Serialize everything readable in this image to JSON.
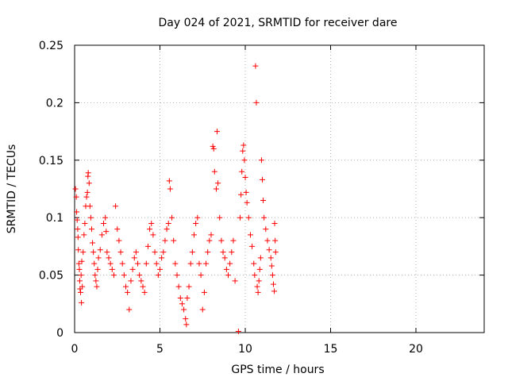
{
  "chart_data": {
    "type": "scatter",
    "title": "Day 024 of 2021, SRMTID for receiver dare",
    "xlabel": "GPS time / hours",
    "ylabel": "SRMTID / TECUs",
    "xlim": [
      0,
      24
    ],
    "ylim": [
      0,
      0.25
    ],
    "x_ticks": [
      0,
      5,
      10,
      15,
      20
    ],
    "x_tick_labels": [
      "0",
      "5",
      "10",
      "15",
      "20"
    ],
    "y_ticks": [
      0,
      0.05,
      0.1,
      0.15,
      0.2,
      0.25
    ],
    "y_tick_labels": [
      "0",
      "0.05",
      "0.1",
      "0.15",
      "0.2",
      "0.25"
    ],
    "grid": true,
    "marker": "+",
    "color": "#ff0000",
    "series": [
      {
        "name": "SRMTID",
        "points": [
          [
            0.05,
            0.125
          ],
          [
            0.1,
            0.118
          ],
          [
            0.12,
            0.105
          ],
          [
            0.15,
            0.098
          ],
          [
            0.18,
            0.09
          ],
          [
            0.2,
            0.083
          ],
          [
            0.22,
            0.072
          ],
          [
            0.25,
            0.06
          ],
          [
            0.28,
            0.055
          ],
          [
            0.3,
            0.045
          ],
          [
            0.32,
            0.038
          ],
          [
            0.35,
            0.035
          ],
          [
            0.38,
            0.05
          ],
          [
            0.4,
            0.026
          ],
          [
            0.42,
            0.062
          ],
          [
            0.45,
            0.04
          ],
          [
            0.5,
            0.07
          ],
          [
            0.55,
            0.085
          ],
          [
            0.6,
            0.095
          ],
          [
            0.65,
            0.11
          ],
          [
            0.7,
            0.118
          ],
          [
            0.75,
            0.122
          ],
          [
            0.78,
            0.136
          ],
          [
            0.8,
            0.139
          ],
          [
            0.85,
            0.13
          ],
          [
            0.9,
            0.11
          ],
          [
            0.95,
            0.1
          ],
          [
            1.0,
            0.09
          ],
          [
            1.05,
            0.078
          ],
          [
            1.1,
            0.07
          ],
          [
            1.15,
            0.06
          ],
          [
            1.2,
            0.05
          ],
          [
            1.25,
            0.045
          ],
          [
            1.3,
            0.04
          ],
          [
            1.35,
            0.055
          ],
          [
            1.4,
            0.065
          ],
          [
            1.5,
            0.072
          ],
          [
            1.6,
            0.085
          ],
          [
            1.7,
            0.095
          ],
          [
            1.8,
            0.1
          ],
          [
            1.85,
            0.088
          ],
          [
            1.9,
            0.07
          ],
          [
            2.0,
            0.065
          ],
          [
            2.1,
            0.06
          ],
          [
            2.2,
            0.055
          ],
          [
            2.3,
            0.05
          ],
          [
            2.4,
            0.11
          ],
          [
            2.5,
            0.09
          ],
          [
            2.6,
            0.08
          ],
          [
            2.7,
            0.07
          ],
          [
            2.8,
            0.06
          ],
          [
            2.9,
            0.05
          ],
          [
            3.0,
            0.04
          ],
          [
            3.1,
            0.035
          ],
          [
            3.2,
            0.02
          ],
          [
            3.3,
            0.045
          ],
          [
            3.4,
            0.055
          ],
          [
            3.5,
            0.065
          ],
          [
            3.6,
            0.07
          ],
          [
            3.7,
            0.06
          ],
          [
            3.8,
            0.05
          ],
          [
            3.9,
            0.045
          ],
          [
            4.0,
            0.04
          ],
          [
            4.1,
            0.035
          ],
          [
            4.2,
            0.06
          ],
          [
            4.3,
            0.075
          ],
          [
            4.4,
            0.09
          ],
          [
            4.5,
            0.095
          ],
          [
            4.6,
            0.085
          ],
          [
            4.7,
            0.07
          ],
          [
            4.8,
            0.06
          ],
          [
            4.9,
            0.05
          ],
          [
            5.0,
            0.055
          ],
          [
            5.1,
            0.065
          ],
          [
            5.2,
            0.07
          ],
          [
            5.3,
            0.08
          ],
          [
            5.4,
            0.09
          ],
          [
            5.5,
            0.095
          ],
          [
            5.55,
            0.132
          ],
          [
            5.6,
            0.125
          ],
          [
            5.7,
            0.1
          ],
          [
            5.8,
            0.08
          ],
          [
            5.9,
            0.06
          ],
          [
            6.0,
            0.05
          ],
          [
            6.1,
            0.04
          ],
          [
            6.2,
            0.03
          ],
          [
            6.3,
            0.025
          ],
          [
            6.4,
            0.02
          ],
          [
            6.5,
            0.012
          ],
          [
            6.55,
            0.007
          ],
          [
            6.6,
            0.03
          ],
          [
            6.7,
            0.04
          ],
          [
            6.8,
            0.06
          ],
          [
            6.9,
            0.07
          ],
          [
            7.0,
            0.085
          ],
          [
            7.1,
            0.095
          ],
          [
            7.2,
            0.1
          ],
          [
            7.3,
            0.06
          ],
          [
            7.4,
            0.05
          ],
          [
            7.5,
            0.02
          ],
          [
            7.6,
            0.035
          ],
          [
            7.7,
            0.06
          ],
          [
            7.8,
            0.07
          ],
          [
            7.9,
            0.08
          ],
          [
            8.0,
            0.085
          ],
          [
            8.1,
            0.162
          ],
          [
            8.15,
            0.16
          ],
          [
            8.2,
            0.14
          ],
          [
            8.3,
            0.125
          ],
          [
            8.35,
            0.175
          ],
          [
            8.4,
            0.13
          ],
          [
            8.5,
            0.1
          ],
          [
            8.6,
            0.08
          ],
          [
            8.7,
            0.07
          ],
          [
            8.8,
            0.065
          ],
          [
            8.9,
            0.055
          ],
          [
            9.0,
            0.05
          ],
          [
            9.1,
            0.06
          ],
          [
            9.2,
            0.07
          ],
          [
            9.3,
            0.08
          ],
          [
            9.4,
            0.045
          ],
          [
            9.6,
            0.001
          ],
          [
            9.7,
            0.1
          ],
          [
            9.75,
            0.12
          ],
          [
            9.8,
            0.14
          ],
          [
            9.85,
            0.158
          ],
          [
            9.9,
            0.163
          ],
          [
            9.95,
            0.15
          ],
          [
            10.0,
            0.135
          ],
          [
            10.05,
            0.122
          ],
          [
            10.1,
            0.113
          ],
          [
            10.2,
            0.1
          ],
          [
            10.3,
            0.085
          ],
          [
            10.4,
            0.075
          ],
          [
            10.5,
            0.06
          ],
          [
            10.55,
            0.05
          ],
          [
            10.6,
            0.232
          ],
          [
            10.65,
            0.2
          ],
          [
            10.7,
            0.04
          ],
          [
            10.75,
            0.035
          ],
          [
            10.8,
            0.045
          ],
          [
            10.85,
            0.055
          ],
          [
            10.9,
            0.065
          ],
          [
            10.95,
            0.15
          ],
          [
            11.0,
            0.133
          ],
          [
            11.05,
            0.115
          ],
          [
            11.1,
            0.1
          ],
          [
            11.2,
            0.09
          ],
          [
            11.3,
            0.08
          ],
          [
            11.4,
            0.072
          ],
          [
            11.5,
            0.065
          ],
          [
            11.55,
            0.058
          ],
          [
            11.6,
            0.05
          ],
          [
            11.65,
            0.042
          ],
          [
            11.7,
            0.036
          ],
          [
            11.72,
            0.095
          ],
          [
            11.75,
            0.08
          ],
          [
            11.78,
            0.07
          ]
        ]
      }
    ]
  }
}
